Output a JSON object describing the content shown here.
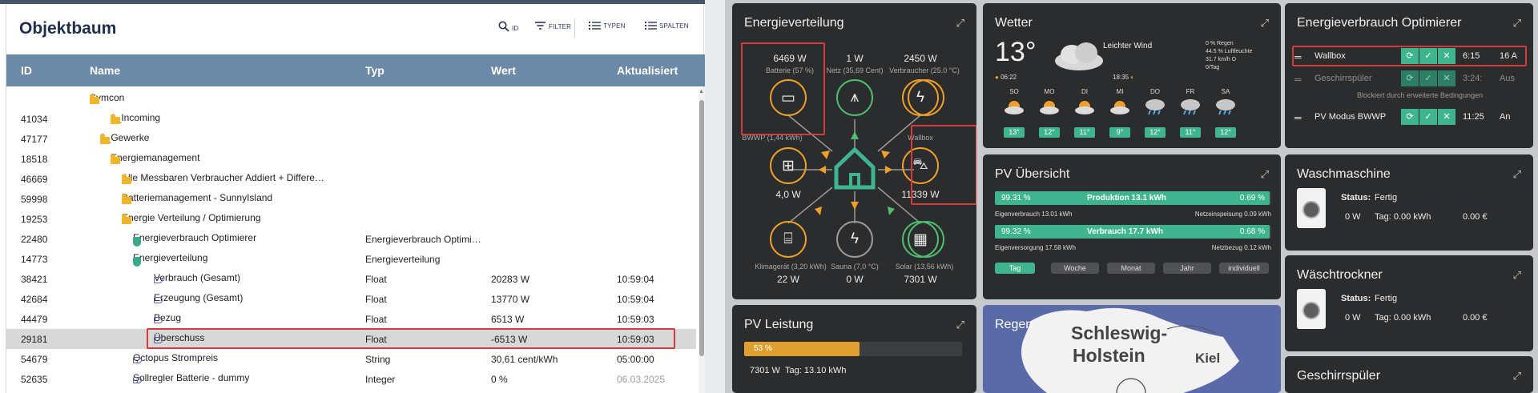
{
  "tree": {
    "title": "Objektbaum",
    "toolbar": {
      "id": "ID",
      "filter": "FILTER",
      "typen": "TYPEN",
      "spalten": "SPALTEN"
    },
    "columns": [
      "ID",
      "Name",
      "Typ",
      "Wert",
      "Aktualisiert"
    ],
    "rows": [
      {
        "id": "",
        "name": "Symcon",
        "typ": "",
        "wert": "",
        "akt": ""
      },
      {
        "id": "41034",
        "name": "1_Incoming",
        "typ": "",
        "wert": "",
        "akt": ""
      },
      {
        "id": "47177",
        "name": "2_Gewerke",
        "typ": "",
        "wert": "",
        "akt": ""
      },
      {
        "id": "18518",
        "name": "Energiemanagement",
        "typ": "",
        "wert": "",
        "akt": ""
      },
      {
        "id": "46669",
        "name": "Alle Messbaren Verbraucher Addiert + Differe…",
        "typ": "",
        "wert": "",
        "akt": ""
      },
      {
        "id": "59998",
        "name": "Batteriemanagement - SunnyIsland",
        "typ": "",
        "wert": "",
        "akt": ""
      },
      {
        "id": "19253",
        "name": "Energie Verteilung / Optimierung",
        "typ": "",
        "wert": "",
        "akt": ""
      },
      {
        "id": "22480",
        "name": "Energieverbrauch Optimierer",
        "typ": "Energieverbrauch Optimi…",
        "wert": "",
        "akt": ""
      },
      {
        "id": "14773",
        "name": "Energieverteilung",
        "typ": "Energieverteilung",
        "wert": "",
        "akt": ""
      },
      {
        "id": "38421",
        "name": "Verbrauch (Gesamt)",
        "typ": "Float",
        "wert": "20283 W",
        "akt": "10:59:04"
      },
      {
        "id": "42684",
        "name": "Erzeugung (Gesamt)",
        "typ": "Float",
        "wert": "13770 W",
        "akt": "10:59:04"
      },
      {
        "id": "44479",
        "name": "Bezug",
        "typ": "Float",
        "wert": "6513 W",
        "akt": "10:59:03"
      },
      {
        "id": "29181",
        "name": "Überschuss",
        "typ": "Float",
        "wert": "-6513 W",
        "akt": "10:59:03"
      },
      {
        "id": "54679",
        "name": "Octopus Strompreis",
        "typ": "String",
        "wert": "30,61 cent/kWh",
        "akt": "05:00:00"
      },
      {
        "id": "52635",
        "name": "Sollregler Batterie - dummy",
        "typ": "Integer",
        "wert": "0 %",
        "akt": "06.03.2025"
      }
    ]
  },
  "energie": {
    "title": "Energieverteilung",
    "batterie": {
      "value": "6469 W",
      "label": "Batterie (57 %)"
    },
    "netz": {
      "value": "1 W",
      "label": "Netz (35,69 Cent)"
    },
    "verbraucher": {
      "value": "2450 W",
      "label": "Verbraucher (25.0 °C)"
    },
    "bwwp": {
      "label": "BWWP (1,44 kWh)",
      "value": "4,0 W"
    },
    "wallbox": {
      "label": "Wallbox",
      "value": "11339 W"
    },
    "klima": {
      "label": "Klimagerät (3,20 kWh)",
      "value": "22 W"
    },
    "sauna": {
      "label": "Sauna (7,0 °C)",
      "value": "0 W"
    },
    "solar": {
      "label": "Solar (13,56 kWh)",
      "value": "7301 W"
    }
  },
  "wetter": {
    "title": "Wetter",
    "temp": "13°",
    "condition": "Leichter Wind",
    "details": [
      "0 % Regen",
      "44.5 % Luftfeuchte",
      "31.7 km/h O",
      "0/Tag"
    ],
    "sunrise": "06:22",
    "sunset": "18:35",
    "days": [
      {
        "d": "SO",
        "t": "13°"
      },
      {
        "d": "MO",
        "t": "12°"
      },
      {
        "d": "DI",
        "t": "11°"
      },
      {
        "d": "MI",
        "t": "9°"
      },
      {
        "d": "DO",
        "t": "12°"
      },
      {
        "d": "FR",
        "t": "11°"
      },
      {
        "d": "SA",
        "t": "12°"
      }
    ]
  },
  "optimierer": {
    "title": "Energieverbrauch Optimierer",
    "items": [
      {
        "name": "Wallbox",
        "time": "6:15",
        "val": "16 A",
        "note": ""
      },
      {
        "name": "Geschirrspüler",
        "time": "3:24:",
        "val": "Aus",
        "note": "Blockiert durch erweiterte Bedingungen"
      },
      {
        "name": "PV Modus BWWP",
        "time": "11:25",
        "val": "An",
        "note": ""
      }
    ]
  },
  "pv": {
    "title": "PV Übersicht",
    "bar1": {
      "left": "99.31 %",
      "center": "Produktion  13.1 kWh",
      "right": "0.69 %",
      "fill": 0.9931
    },
    "row1": {
      "left": "Eigenverbrauch  13.01 kWh",
      "right": "Netzeinspeisung 0.09 kWh"
    },
    "bar2": {
      "left": "99.32 %",
      "center": "Verbrauch  17.7 kWh",
      "right": "0.68 %",
      "fill": 0.9932
    },
    "row2": {
      "left": "Eigenversorgung 17.58 kWh",
      "right": "Netzbezug 0.12 kWh"
    },
    "tabs": [
      "Tag",
      "Woche",
      "Monat",
      "Jahr",
      "individuell"
    ]
  },
  "waschmaschine": {
    "title": "Waschmaschine",
    "status_label": "Status:",
    "status": "Fertig",
    "w": "0 W",
    "tag": "Tag: 0.00 kWh",
    "eur": "0.00 €"
  },
  "trockner": {
    "title": "Wäschtrockner",
    "status_label": "Status:",
    "status": "Fertig",
    "w": "0 W",
    "tag": "Tag: 0.00 kWh",
    "eur": "0.00 €"
  },
  "geschirr": {
    "title": "Geschirrspüler"
  },
  "pvleistung": {
    "title": "PV Leistung",
    "percent": "53 %",
    "fill": 0.53,
    "w": "7301 W",
    "tag": "Tag: 13.10 kWh"
  },
  "regen": {
    "title": "Regen",
    "map_line1": "Schleswig-",
    "map_line2": "Holstein",
    "map_city": "Kiel"
  },
  "colors": {
    "accent": "#3fb58f",
    "orange": "#f0a028",
    "header": "#6d89a8",
    "highlight": "#d33c3c"
  }
}
